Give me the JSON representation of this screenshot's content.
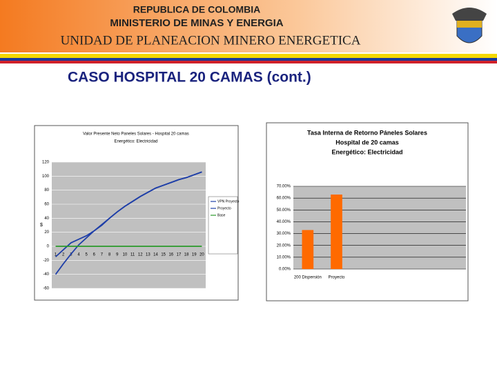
{
  "header": {
    "line1": "REPUBLICA DE COLOMBIA",
    "line2": "MINISTERIO DE MINAS Y ENERGIA",
    "line3": "UNIDAD DE PLANEACION MINERO ENERGETICA"
  },
  "title": "CASO HOSPITAL 20 CAMAS (cont.)",
  "chart_data": [
    {
      "type": "line",
      "title": "Valor Presente Neto Paneles Solares - Hospital 20 camas",
      "subtitle": "Energético: Electricidad",
      "y_label": "$",
      "categories": [
        "1",
        "2",
        "3",
        "4",
        "5",
        "6",
        "7",
        "8",
        "9",
        "10",
        "11",
        "12",
        "13",
        "14",
        "15",
        "16",
        "17",
        "18",
        "19",
        "20"
      ],
      "series": [
        {
          "name": "VPN Proyecto",
          "color": "#1f3fa8",
          "values": [
            -15,
            -5,
            5,
            10,
            15,
            22,
            30,
            40,
            49,
            57,
            64,
            71,
            77,
            83,
            87,
            91,
            95,
            98,
            102,
            106
          ]
        },
        {
          "name": "Proyecto",
          "color": "#1f3fa8",
          "values": [
            -40,
            -25,
            -11,
            2,
            12,
            22,
            31,
            40,
            49,
            57,
            64,
            71,
            77,
            83,
            87,
            91,
            95,
            98,
            102,
            106
          ]
        },
        {
          "name": "Base",
          "color": "#2a9a2a",
          "values": [
            0,
            0,
            0,
            0,
            0,
            0,
            0,
            0,
            0,
            0,
            0,
            0,
            0,
            0,
            0,
            0,
            0,
            0,
            0,
            0
          ]
        }
      ],
      "ylim": [
        -60,
        120
      ],
      "yticks": [
        -60,
        -40,
        -20,
        0,
        20,
        40,
        60,
        80,
        100,
        120
      ],
      "grid": true
    },
    {
      "type": "bar",
      "title": "Tasa Interna de Retorno Páneles Solares",
      "subtitle": "Hospital de 20 camas",
      "note": "Energético: Electricidad",
      "categories": [
        "200 Dispersión",
        "Proyecto"
      ],
      "values": [
        33,
        63
      ],
      "color": "#ff6a00",
      "ylim": [
        0,
        70
      ],
      "yticks": [
        {
          "value": 0,
          "label": "0.00%"
        },
        {
          "value": 10,
          "label": "10.00%"
        },
        {
          "value": 20,
          "label": "20.00%"
        },
        {
          "value": 30,
          "label": "30.00%"
        },
        {
          "value": 40,
          "label": "40.00%"
        },
        {
          "value": 50,
          "label": "50.00%"
        },
        {
          "value": 60,
          "label": "60.00%"
        },
        {
          "value": 70,
          "label": "70.00%"
        }
      ],
      "grid": true
    }
  ]
}
